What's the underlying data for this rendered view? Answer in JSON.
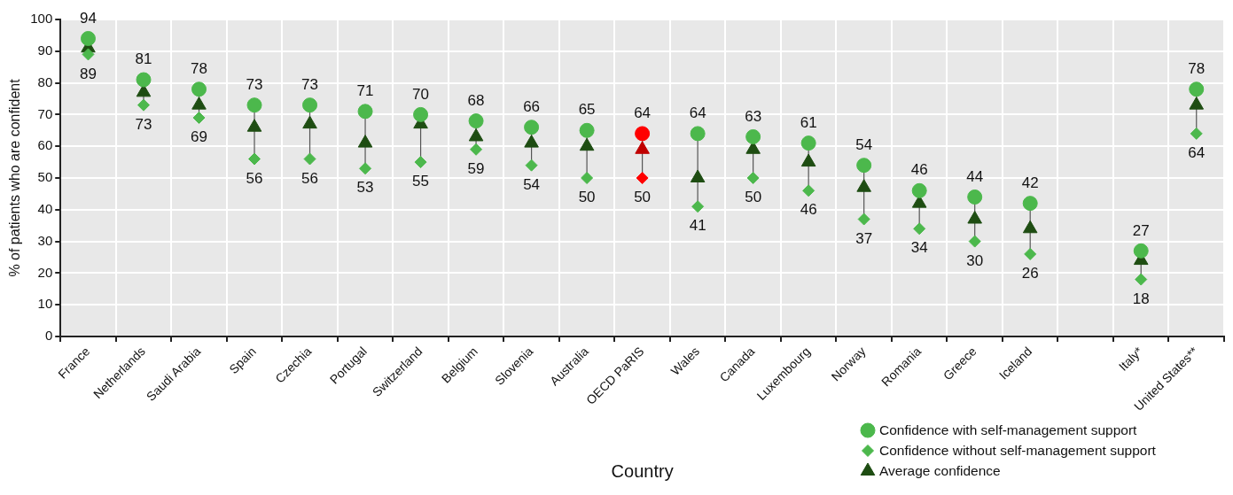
{
  "chart_data": {
    "type": "scatter",
    "xlabel": "Country",
    "ylabel": "% of patients who are confident",
    "categories": [
      "France",
      "Netherlands",
      "Saudi Arabia",
      "Spain",
      "Czechia",
      "Portugal",
      "Switzerland",
      "Belgium",
      "Slovenia",
      "Australia",
      "OECD PaRIS",
      "Wales",
      "Canada",
      "Luxembourg",
      "Norway",
      "Romania",
      "Greece",
      "Iceland",
      null,
      "Italy*",
      "United States**"
    ],
    "series": [
      {
        "name": "Confidence with self-management support",
        "color": "#4cb84c",
        "marker": "circle",
        "colors": [
          "#4cb84c",
          "#4cb84c",
          "#4cb84c",
          "#4cb84c",
          "#4cb84c",
          "#4cb84c",
          "#4cb84c",
          "#4cb84c",
          "#4cb84c",
          "#4cb84c",
          "#ff0000",
          "#4cb84c",
          "#4cb84c",
          "#4cb84c",
          "#4cb84c",
          "#4cb84c",
          "#4cb84c",
          "#4cb84c",
          "#4cb84c",
          "#4cb84c",
          "#4cb84c"
        ],
        "values": [
          94,
          81,
          78,
          73,
          73,
          71,
          70,
          68,
          66,
          65,
          64,
          64,
          63,
          61,
          54,
          46,
          44,
          42,
          null,
          27,
          78
        ],
        "value_labels": [
          "94",
          "81",
          "78",
          "73",
          "73",
          "71",
          "70",
          "68",
          "66",
          "65",
          "64",
          "64",
          "63",
          "61",
          "54",
          "46",
          "44",
          "42",
          null,
          "27",
          "78"
        ]
      },
      {
        "name": "Confidence without self-management support",
        "color": "#4cb84c",
        "marker": "diamond",
        "colors": [
          "#4cb84c",
          "#4cb84c",
          "#4cb84c",
          "#4cb84c",
          "#4cb84c",
          "#4cb84c",
          "#4cb84c",
          "#4cb84c",
          "#4cb84c",
          "#4cb84c",
          "#ff0000",
          "#4cb84c",
          "#4cb84c",
          "#4cb84c",
          "#4cb84c",
          "#4cb84c",
          "#4cb84c",
          "#4cb84c",
          "#4cb84c",
          "#4cb84c",
          "#4cb84c"
        ],
        "values": [
          89,
          73,
          69,
          56,
          56,
          53,
          55,
          59,
          54,
          50,
          50,
          41,
          50,
          46,
          37,
          34,
          30,
          26,
          null,
          18,
          64
        ],
        "value_labels": [
          "89",
          "73",
          "69",
          "56",
          "56",
          "53",
          "55",
          "59",
          "54",
          "50",
          "50",
          "41",
          "50",
          "46",
          "37",
          "34",
          "30",
          "26",
          null,
          "18",
          "64"
        ]
      },
      {
        "name": "Average confidence",
        "color": "#1e4d12",
        "marker": "triangle",
        "colors": [
          "#1e4d12",
          "#1e4d12",
          "#1e4d12",
          "#1e4d12",
          "#1e4d12",
          "#1e4d12",
          "#1e4d12",
          "#1e4d12",
          "#1e4d12",
          "#1e4d12",
          "#c00000",
          "#1e4d12",
          "#1e4d12",
          "#1e4d12",
          "#1e4d12",
          "#1e4d12",
          "#1e4d12",
          "#1e4d12",
          "#1e4d12",
          "#1e4d12",
          "#1e4d12"
        ],
        "values": [
          91,
          77,
          73,
          66,
          67,
          61,
          67,
          63,
          61,
          60,
          59,
          50,
          59,
          55,
          47,
          42,
          37,
          34,
          null,
          24,
          73
        ]
      }
    ],
    "ylim": [
      0,
      100
    ],
    "yticks": [
      0,
      10,
      20,
      30,
      40,
      50,
      60,
      70,
      80,
      90,
      100
    ],
    "grid": true,
    "legend": "bottom right"
  }
}
